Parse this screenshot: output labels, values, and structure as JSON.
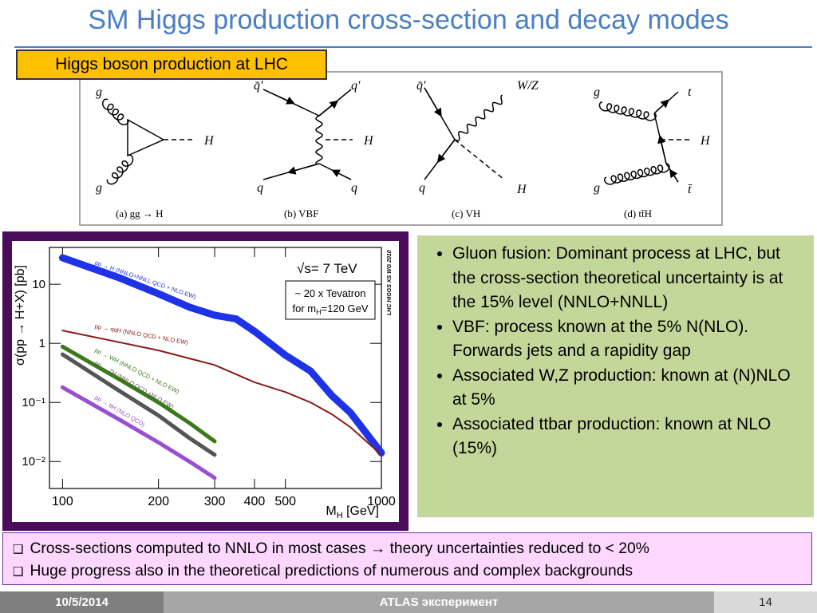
{
  "header": {
    "title": "SM Higgs production cross-section and decay modes"
  },
  "section_tag": "Higgs boson production at LHC",
  "diagrams": [
    {
      "caption": "(a) gg → H",
      "labels": [
        "g",
        "g",
        "H"
      ]
    },
    {
      "caption": "(b) VBF",
      "labels": [
        "q̄′",
        "q′",
        "H",
        "q",
        "q"
      ]
    },
    {
      "caption": "(c) VH",
      "labels": [
        "q̄′",
        "W/Z",
        "q",
        "H"
      ]
    },
    {
      "caption": "(d) tt̄H",
      "labels": [
        "g",
        "t",
        "H",
        "g",
        "t̄"
      ]
    }
  ],
  "chart_data": {
    "type": "line",
    "ylabel": "σ(pp → H+X) [pb]",
    "xlabel": [
      "M",
      "H",
      " [GeV]"
    ],
    "energy": "√s= 7 TeV",
    "watermark": "LHC HIGGS XS WG 2010",
    "callout": {
      "line1": "~ 20 x Tevatron",
      "line2": [
        "for m",
        "H",
        "=120 GeV"
      ]
    },
    "xlog": true,
    "ylog": true,
    "xlim": [
      91,
      1000
    ],
    "ylim": [
      0.0035,
      42
    ],
    "xticks": [
      100,
      200,
      300,
      400,
      500,
      1000
    ],
    "yticks": [
      10,
      1,
      {
        "value": 0.1,
        "label": "10⁻¹"
      },
      {
        "value": 0.01,
        "label": "10⁻²"
      }
    ],
    "series": [
      {
        "name": "pp → H (NNLO+NNLL QCD + NLO EW)",
        "color": "#1f33e6",
        "x": [
          100,
          150,
          200,
          250,
          300,
          350,
          400,
          500,
          600,
          700,
          800,
          1000
        ],
        "values": [
          28,
          13,
          6.9,
          4.1,
          3.0,
          2.6,
          1.6,
          0.63,
          0.34,
          0.13,
          0.067,
          0.014
        ]
      },
      {
        "name": "pp → qqH (NNLO QCD + NLO EW)",
        "color": "#8b1a1a",
        "x": [
          100,
          200,
          300,
          400,
          500,
          600,
          700,
          800,
          1000
        ],
        "values": [
          1.65,
          0.76,
          0.43,
          0.22,
          0.15,
          0.1,
          0.063,
          0.038,
          0.013
        ]
      },
      {
        "name": "pp → WH (NNLO QCD + NLO EW)",
        "color": "#3a7a1a",
        "x": [
          100,
          150,
          200,
          250,
          300
        ],
        "values": [
          0.88,
          0.25,
          0.1,
          0.045,
          0.022
        ]
      },
      {
        "name": "pp → ZH (NNLO QCD +NLO EW)",
        "color": "#555555",
        "x": [
          100,
          150,
          200,
          250,
          300
        ],
        "values": [
          0.65,
          0.16,
          0.06,
          0.025,
          0.013
        ]
      },
      {
        "name": "pp → ttH (NLO QCD)",
        "color": "#9a4fd0",
        "x": [
          100,
          150,
          200,
          250,
          300
        ],
        "values": [
          0.18,
          0.052,
          0.021,
          0.01,
          0.0053
        ]
      }
    ]
  },
  "bullets": [
    "Gluon fusion: Dominant process at LHC, but the cross-section theoretical uncertainty is at the 15% level (NNLO+NNLL)",
    "VBF: process known at the 5% N(NLO). Forwards jets and a rapidity gap",
    "Associated W,Z production: known at (N)NLO at 5%",
    "Associated ttbar production: known at NLO (15%)"
  ],
  "notes": [
    "Cross-sections computed to NNLO in most cases → theory uncertainties reduced to < 20%",
    "Huge progress also in the theoretical predictions of numerous and complex backgrounds"
  ],
  "footer": {
    "date": "10/5/2014",
    "center": "ATLAS эксперимент",
    "page": 14
  }
}
